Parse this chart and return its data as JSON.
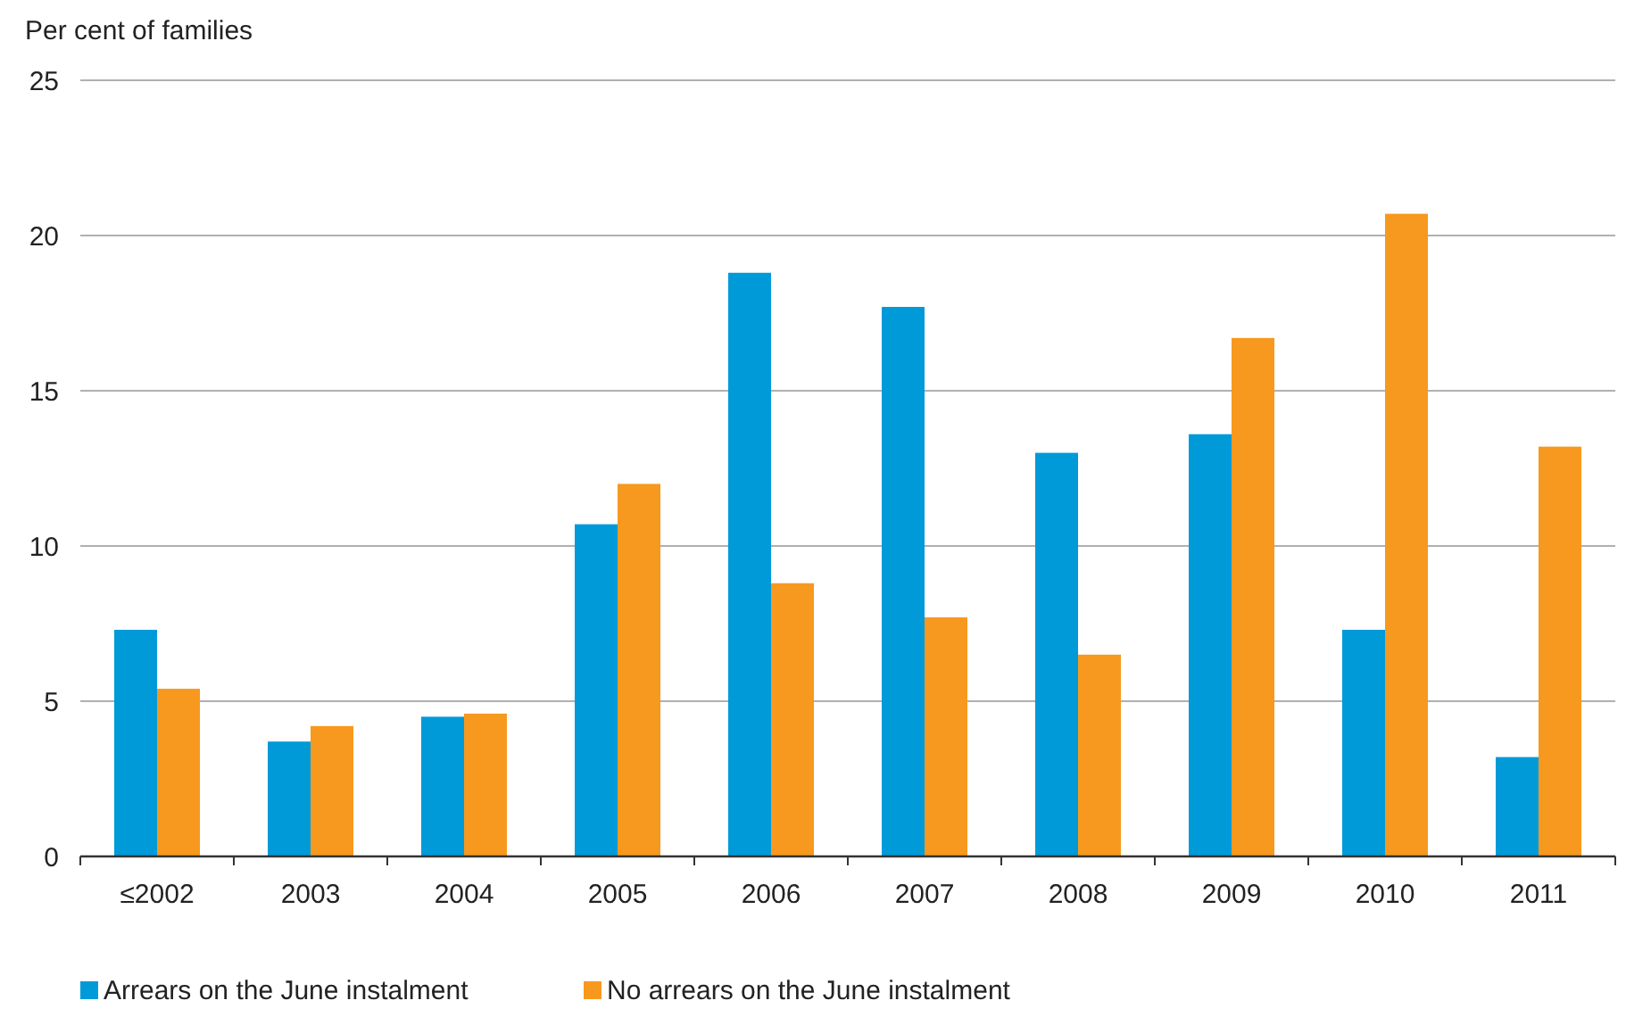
{
  "chart_data": {
    "type": "bar",
    "ylabel": "Per cent of families",
    "categories": [
      "≤2002",
      "2003",
      "2004",
      "2005",
      "2006",
      "2007",
      "2008",
      "2009",
      "2010",
      "2011"
    ],
    "series": [
      {
        "name": "Arrears on the June instalment",
        "color": "#009ad9",
        "values": [
          7.3,
          3.7,
          4.5,
          10.7,
          18.8,
          17.7,
          13.0,
          13.6,
          7.3,
          3.2
        ]
      },
      {
        "name": "No arrears on the June instalment",
        "color": "#f7991f",
        "values": [
          5.4,
          4.2,
          4.6,
          12.0,
          8.8,
          7.7,
          6.5,
          16.7,
          20.7,
          13.2
        ]
      }
    ],
    "ylim": [
      0,
      25
    ],
    "yticks": [
      0,
      5,
      10,
      15,
      20,
      25
    ],
    "grid": "y",
    "legend": "bottom"
  }
}
